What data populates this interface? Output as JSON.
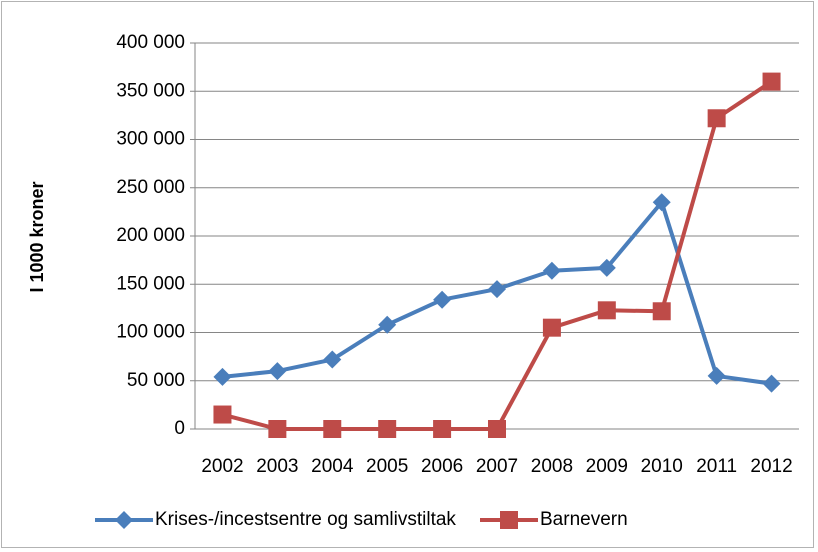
{
  "chart_data": {
    "type": "line",
    "y_label": "I 1000 kroner",
    "categories": [
      "2002",
      "2003",
      "2004",
      "2005",
      "2006",
      "2007",
      "2008",
      "2009",
      "2010",
      "2011",
      "2012"
    ],
    "series": [
      {
        "name": "Krises-/incestsentre og samlivstiltak",
        "color": "#4a7ebb",
        "marker": "diamond",
        "values": [
          54000,
          60000,
          72000,
          108000,
          134000,
          145000,
          164000,
          167000,
          235000,
          55000,
          47000
        ]
      },
      {
        "name": "Barnevern",
        "color": "#be4b48",
        "marker": "square",
        "values": [
          15000,
          0,
          0,
          0,
          0,
          0,
          105000,
          123000,
          122000,
          322000,
          360000
        ]
      }
    ],
    "ylim": [
      0,
      400000
    ],
    "yticks": [
      0,
      {
        "value": 50000,
        "label": "50 000"
      },
      {
        "value": 100000,
        "label": "100 000"
      },
      {
        "value": 150000,
        "label": "150 000"
      },
      {
        "value": 200000,
        "label": "200 000"
      },
      {
        "value": 250000,
        "label": "250 000"
      },
      {
        "value": 300000,
        "label": "300 000"
      },
      {
        "value": 350000,
        "label": "350 000"
      },
      {
        "value": 400000,
        "label": "400 000"
      }
    ],
    "grid": true,
    "legend": "bottom"
  }
}
